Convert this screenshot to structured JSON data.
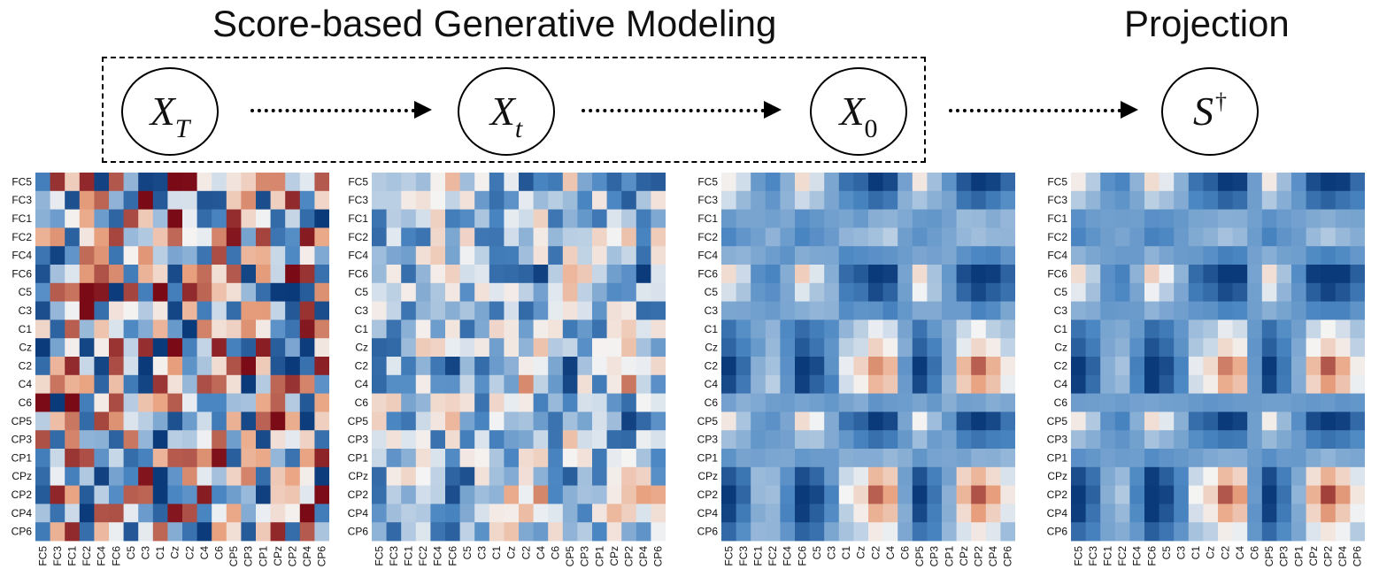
{
  "titles": {
    "generative": "Score-based Generative Modeling",
    "projection": "Projection"
  },
  "nodes": [
    {
      "name": "x-t-final-node",
      "base": "X",
      "sub": "T",
      "sup": ""
    },
    {
      "name": "x-t-node",
      "base": "X",
      "sub": "t",
      "sup": ""
    },
    {
      "name": "x-0-node",
      "base": "X",
      "sub": "0",
      "sup": ""
    },
    {
      "name": "s-dagger-node",
      "base": "S",
      "sub": "",
      "sup": "†"
    }
  ],
  "channels": [
    "FC5",
    "FC3",
    "FC1",
    "FC2",
    "FC4",
    "FC6",
    "C5",
    "C3",
    "C1",
    "Cz",
    "C2",
    "C4",
    "C6",
    "CP5",
    "CP3",
    "CP1",
    "CPz",
    "CP2",
    "CP4",
    "CP6"
  ],
  "colors": {
    "deep_blue": "#0b3a7a",
    "mid_blue": "#4a86c2",
    "white": "#f4f4f4",
    "mid_red": "#e9a27f",
    "deep_red": "#7a0a16",
    "text": "#111111"
  },
  "heatmaps": [
    {
      "name": "heatmap-x-t-final",
      "kind": "noise",
      "seed": 7
    },
    {
      "name": "heatmap-x-t",
      "kind": "partial",
      "seed": 23
    },
    {
      "name": "heatmap-x-0",
      "kind": "structured",
      "seed": 41
    },
    {
      "name": "heatmap-s-dagger",
      "kind": "projected",
      "seed": 59
    }
  ]
}
